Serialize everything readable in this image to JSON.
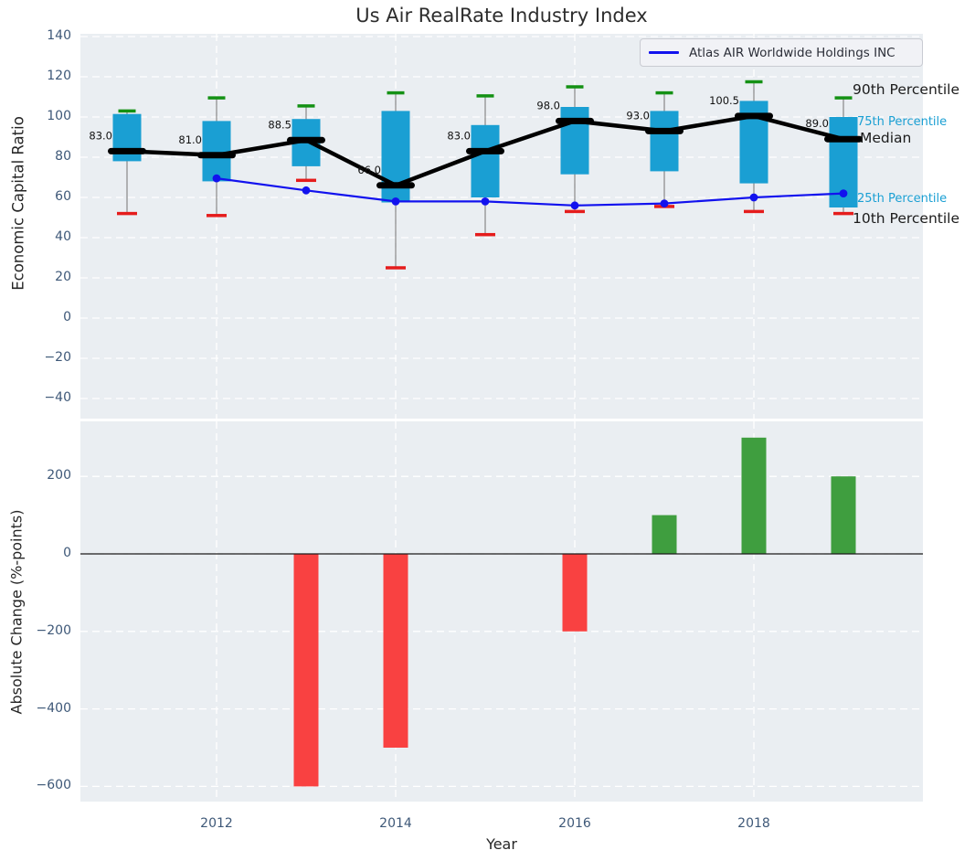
{
  "colors": {
    "box_fill": "#1a9fd3",
    "cap_high": "#149114",
    "cap_low": "#e51c1c",
    "median": "#000000",
    "company_line": "#1212ee",
    "bar_positive": "#3f9e3f",
    "bar_negative": "#f94141",
    "axes_bg": "#eaeef2",
    "grid": "#ffffff",
    "whisker": "#7f7f7f",
    "tick_label": "#3e5878"
  },
  "chart_data": [
    {
      "type": "box-percentile",
      "title": "Us Air RealRate Industry Index",
      "ylabel": "Economic Capital Ratio",
      "years": [
        2011,
        2012,
        2013,
        2014,
        2015,
        2016,
        2017,
        2018,
        2019
      ],
      "percentile_series": [
        {
          "name": "90th Percentile",
          "values": [
            103,
            109.5,
            105.5,
            112,
            110.5,
            115,
            112,
            117.5,
            109.5
          ]
        },
        {
          "name": "75th Percentile",
          "values": [
            101.5,
            98,
            99,
            103,
            96,
            105,
            103,
            108,
            100
          ]
        },
        {
          "name": "Median",
          "values": [
            83,
            81,
            88.5,
            66,
            83,
            98,
            93,
            100.5,
            89
          ]
        },
        {
          "name": "25th Percentile",
          "values": [
            78,
            68,
            75.5,
            57.5,
            60,
            71.5,
            73,
            67,
            55
          ]
        },
        {
          "name": "10th Percentile",
          "values": [
            52,
            51,
            68.5,
            25,
            41.5,
            53,
            55.5,
            53,
            52
          ]
        }
      ],
      "median_labels": [
        "83.0",
        "81.0",
        "88.5",
        "66.0",
        "83.0",
        "98.0",
        "93.0",
        "100.5",
        "89.0"
      ],
      "company_series": {
        "name": "Atlas AIR Worldwide Holdings INC",
        "years": [
          2012,
          2013,
          2014,
          2015,
          2016,
          2017,
          2018,
          2019
        ],
        "values": [
          69.5,
          63.5,
          58,
          58,
          56,
          57,
          60,
          62
        ]
      },
      "annotations": {
        "p90": "90th Percentile",
        "p75": "75th Percentile",
        "median": "Median",
        "p25": "25th Percentile",
        "p10": "10th Percentile"
      },
      "yticks": [
        {
          "v": 140,
          "t": "140"
        },
        {
          "v": 120,
          "t": "120"
        },
        {
          "v": 100,
          "t": "100"
        },
        {
          "v": 80,
          "t": "80"
        },
        {
          "v": 60,
          "t": "60"
        },
        {
          "v": 40,
          "t": "40"
        },
        {
          "v": 20,
          "t": "20"
        },
        {
          "v": 0,
          "t": "0"
        },
        {
          "v": -20,
          "t": "−20"
        },
        {
          "v": -40,
          "t": "−40"
        }
      ],
      "xgrid_years": [
        2012,
        2014,
        2016,
        2018
      ],
      "ylim": [
        -50,
        141
      ],
      "legend_position": "upper right",
      "grid": true
    },
    {
      "type": "bar",
      "ylabel": "Absolute Change (%-points)",
      "xlabel": "Year",
      "years": [
        2011,
        2012,
        2013,
        2014,
        2015,
        2016,
        2017,
        2018,
        2019
      ],
      "values": [
        0,
        0,
        -600,
        -500,
        0,
        -200,
        100,
        300,
        200
      ],
      "yticks": [
        {
          "v": 200,
          "t": "200"
        },
        {
          "v": 0,
          "t": "0"
        },
        {
          "v": -200,
          "t": "−200"
        },
        {
          "v": -400,
          "t": "−400"
        },
        {
          "v": -600,
          "t": "−600"
        }
      ],
      "xticks": [
        {
          "v": 2012,
          "t": "2012"
        },
        {
          "v": 2014,
          "t": "2014"
        },
        {
          "v": 2016,
          "t": "2016"
        },
        {
          "v": 2018,
          "t": "2018"
        }
      ],
      "ylim": [
        -640,
        344
      ],
      "grid": true
    }
  ]
}
